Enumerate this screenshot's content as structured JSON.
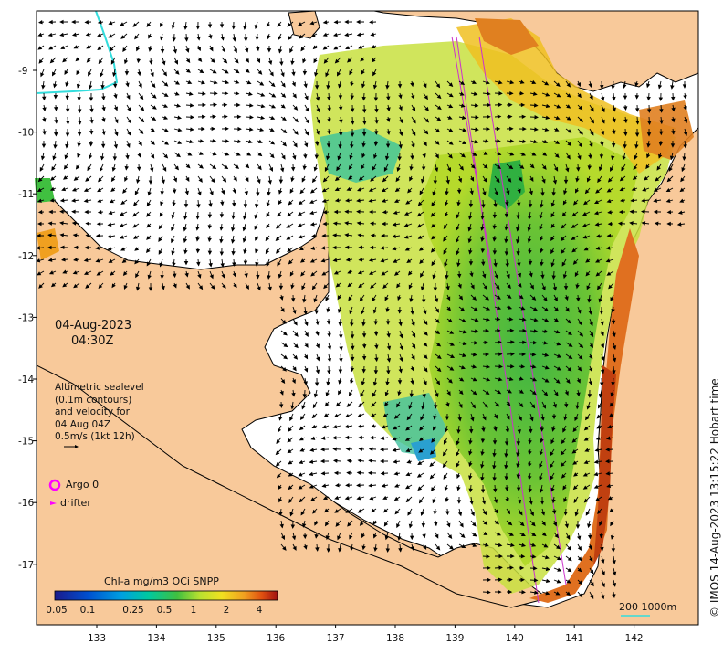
{
  "map": {
    "date": "04-Aug-2023",
    "time": "04:30Z",
    "legend_lines": [
      "Altimetric sealevel",
      "(0.1m contours)",
      "and velocity for",
      "04 Aug 04Z",
      "0.5m/s (1kt 12h)"
    ],
    "argo_label": "Argo 0",
    "drifter_label": "drifter",
    "colorbar_title": "Chl-a mg/m3 OCi SNPP",
    "colorbar_ticks": [
      "0.05",
      "0.1",
      "0.25",
      "0.5",
      "1",
      "2",
      "4"
    ],
    "scale_label": "200 1000m",
    "copyright": "© IMOS 14-Aug-2023 13:15:22 Hobart time",
    "lat_ticks": [
      "9",
      "10",
      "11",
      "12",
      "13",
      "14",
      "15",
      "16",
      "17"
    ],
    "lon_ticks": [
      "133",
      "134",
      "135",
      "136",
      "137",
      "138",
      "139",
      "140",
      "141",
      "142"
    ],
    "colors": {
      "land": "#f8c99a",
      "sea": "#ffffff",
      "argo": "#ff00ff",
      "track": "#cc33cc",
      "contour": "#33dddd"
    }
  }
}
